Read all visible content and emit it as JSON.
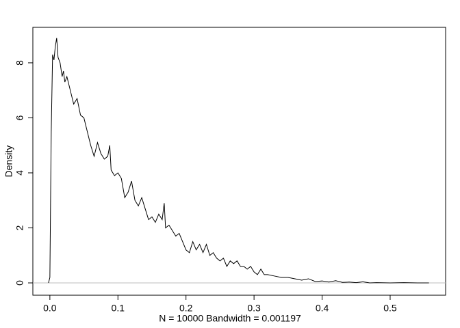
{
  "chart_data": {
    "type": "line",
    "xlabel": "N = 10000   Bandwidth = 0.001197",
    "ylabel": "Density",
    "x": [
      -0.002,
      0.0,
      0.002,
      0.004,
      0.006,
      0.008,
      0.01,
      0.012,
      0.015,
      0.018,
      0.02,
      0.022,
      0.025,
      0.03,
      0.035,
      0.04,
      0.045,
      0.05,
      0.055,
      0.06,
      0.065,
      0.07,
      0.075,
      0.08,
      0.085,
      0.088,
      0.09,
      0.095,
      0.1,
      0.105,
      0.11,
      0.115,
      0.12,
      0.125,
      0.13,
      0.135,
      0.14,
      0.145,
      0.15,
      0.155,
      0.16,
      0.165,
      0.168,
      0.17,
      0.175,
      0.18,
      0.185,
      0.19,
      0.195,
      0.2,
      0.205,
      0.21,
      0.215,
      0.22,
      0.225,
      0.23,
      0.235,
      0.24,
      0.245,
      0.25,
      0.255,
      0.26,
      0.265,
      0.27,
      0.275,
      0.28,
      0.285,
      0.29,
      0.295,
      0.3,
      0.305,
      0.31,
      0.315,
      0.32,
      0.33,
      0.34,
      0.35,
      0.36,
      0.37,
      0.38,
      0.39,
      0.4,
      0.41,
      0.42,
      0.43,
      0.44,
      0.45,
      0.46,
      0.47,
      0.48,
      0.5,
      0.52,
      0.54,
      0.557
    ],
    "series": [
      {
        "color": "#000000",
        "values": [
          0.0,
          0.2,
          5.5,
          8.3,
          8.1,
          8.6,
          8.9,
          8.2,
          8.0,
          7.5,
          7.7,
          7.3,
          7.5,
          7.0,
          6.5,
          6.7,
          6.1,
          6.0,
          5.5,
          5.0,
          4.6,
          5.1,
          4.7,
          4.5,
          4.6,
          5.0,
          4.1,
          3.9,
          4.0,
          3.8,
          3.1,
          3.3,
          3.7,
          3.0,
          2.8,
          3.1,
          2.7,
          2.3,
          2.4,
          2.2,
          2.5,
          2.3,
          2.9,
          2.0,
          2.1,
          1.9,
          1.7,
          1.8,
          1.5,
          1.2,
          1.1,
          1.5,
          1.2,
          1.4,
          1.1,
          1.4,
          1.0,
          1.1,
          0.9,
          0.8,
          0.9,
          0.6,
          0.8,
          0.7,
          0.8,
          0.6,
          0.6,
          0.5,
          0.6,
          0.4,
          0.3,
          0.5,
          0.3,
          0.3,
          0.25,
          0.2,
          0.2,
          0.15,
          0.1,
          0.15,
          0.05,
          0.07,
          0.03,
          0.08,
          0.02,
          0.03,
          0.01,
          0.04,
          0.0,
          0.01,
          0.0,
          0.01,
          0.0,
          0.0
        ]
      }
    ],
    "xlim": [
      -0.025,
      0.5815
    ],
    "xticks": [
      {
        "value": 0,
        "label": "0.0"
      },
      0.1,
      0.2,
      0.3,
      0.4,
      0.5
    ],
    "ylim": [
      -0.447,
      9.29
    ],
    "yticks": [
      0,
      2,
      4,
      6,
      8
    ],
    "zero_line": true,
    "zero_line_color": "#bebebe"
  }
}
